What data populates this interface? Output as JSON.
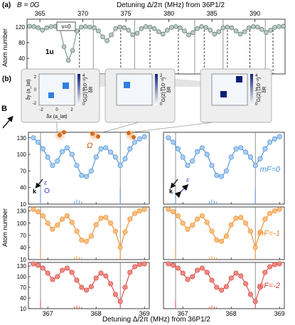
{
  "panel_a": {
    "label": "(a)",
    "condition": "B = 0G",
    "top_axis_label": "Detuning Δ/2π (MHz) from 36P1/2",
    "top_ticks": [
      "365",
      "370",
      "375",
      "380",
      "385",
      "390"
    ],
    "ylabel": "Atom number",
    "yticks": [
      "40",
      "80",
      "120"
    ],
    "nu_label": "ν=0",
    "state_label": "1u"
  },
  "panel_b": {
    "label": "(b)",
    "b_field_label": "B",
    "omega_label": "Ω",
    "epsilon_label": "ε",
    "k_label": "k",
    "ylabel": "Atom number",
    "xlabel": "Detuning Δ/2π (MHz) from 36P1/2",
    "xticks": [
      "367",
      "368",
      "369"
    ],
    "yticks": [
      "10",
      "40",
      "70",
      "100",
      "130"
    ],
    "row_labels": [
      "mF=0",
      "mF=-1",
      "mF=-2"
    ],
    "row_colors": [
      "#4a90d9",
      "#f08a24",
      "#d9423a"
    ],
    "insets": [
      {
        "g2_label": "G(2) (10⁻²)",
        "dy_label": "δy (a_lat)",
        "dx_label": "δx (a_lat)",
        "cbar_ticks": [
          "0",
          "2",
          "4"
        ],
        "dx_ticks": [
          "-2",
          "0",
          "2"
        ],
        "dy_ticks": [
          "2",
          "0",
          "-2"
        ],
        "dR": "δR"
      },
      {
        "g2_label": "G(2) (10⁻²)",
        "cbar_ticks": [
          "0",
          "1",
          "2"
        ],
        "dR": "δR"
      },
      {
        "g2_label": "G(2) (10⁻²)",
        "cbar_ticks": [
          "0",
          "2",
          "4"
        ],
        "dR": "δR"
      }
    ]
  },
  "chart_data": [
    {
      "type": "scatter",
      "title": "",
      "xlabel": "Detuning Δ/2π (MHz) from 36P1/2",
      "ylabel": "Atom number",
      "xlim": [
        363.5,
        393.5
      ],
      "ylim": [
        0,
        140
      ],
      "x": [
        363.8,
        364.3,
        364.8,
        365.3,
        365.8,
        366.3,
        366.8,
        367.3,
        367.8,
        368.3,
        368.8,
        369.3,
        369.8,
        370.3,
        370.8,
        371.3,
        371.8,
        372.3,
        372.8,
        373.3,
        373.8,
        374.3,
        374.8,
        375.3,
        375.8,
        376.3,
        376.8,
        377.3,
        377.8,
        378.3,
        378.8,
        379.3,
        379.8,
        380.3,
        380.8,
        381.3,
        381.8,
        382.3,
        382.8,
        383.3,
        383.8,
        384.3,
        384.8,
        385.3,
        385.8,
        386.3,
        386.8,
        387.3,
        387.8,
        388.3,
        388.8,
        389.3,
        389.8,
        390.3,
        390.8,
        391.3,
        391.8,
        392.3,
        392.8,
        393.3
      ],
      "y": [
        122,
        121,
        118,
        112,
        118,
        121,
        122,
        118,
        70,
        35,
        60,
        110,
        120,
        121,
        120,
        118,
        110,
        95,
        85,
        100,
        116,
        120,
        118,
        112,
        100,
        104,
        116,
        121,
        120,
        116,
        108,
        102,
        112,
        119,
        121,
        118,
        110,
        100,
        106,
        116,
        121,
        119,
        112,
        102,
        108,
        118,
        120,
        118,
        110,
        102,
        108,
        118,
        121,
        120,
        114,
        106,
        112,
        119,
        121,
        122
      ]
    },
    {
      "type": "scatter",
      "title": "mF=0",
      "xlim": [
        366.6,
        369.1
      ],
      "ylim": [
        10,
        140
      ],
      "x": [
        366.7,
        366.8,
        366.9,
        367.0,
        367.1,
        367.2,
        367.3,
        367.4,
        367.5,
        367.6,
        367.7,
        367.8,
        367.9,
        368.0,
        368.1,
        368.2,
        368.3,
        368.4,
        368.5,
        368.6,
        368.7,
        368.8,
        368.9,
        369.0
      ],
      "y": [
        130,
        122,
        110,
        95,
        80,
        88,
        105,
        112,
        100,
        80,
        62,
        60,
        70,
        95,
        110,
        112,
        104,
        95,
        80,
        92,
        110,
        122,
        128,
        132
      ],
      "series": [
        {
          "name": "mF=0",
          "values": [
            130,
            122,
            110,
            95,
            80,
            88,
            105,
            112,
            100,
            80,
            62,
            60,
            70,
            95,
            110,
            112,
            104,
            95,
            80,
            92,
            110,
            122,
            128,
            132
          ]
        }
      ]
    },
    {
      "type": "scatter",
      "title": "mF=-1",
      "xlim": [
        366.6,
        369.1
      ],
      "ylim": [
        10,
        140
      ],
      "series": [
        {
          "name": "mF=-1",
          "values": [
            134,
            128,
            118,
            100,
            85,
            95,
            110,
            118,
            102,
            80,
            58,
            55,
            68,
            96,
            112,
            114,
            100,
            80,
            40,
            78,
            110,
            124,
            130,
            134
          ]
        }
      ]
    },
    {
      "type": "scatter",
      "title": "mF=-2",
      "xlim": [
        366.6,
        369.1
      ],
      "ylim": [
        10,
        140
      ],
      "series": [
        {
          "name": "mF=-2",
          "values": [
            136,
            132,
            124,
            110,
            92,
            100,
            118,
            124,
            112,
            90,
            70,
            62,
            72,
            96,
            110,
            102,
            80,
            50,
            30,
            70,
            112,
            128,
            134,
            136
          ]
        }
      ]
    }
  ]
}
